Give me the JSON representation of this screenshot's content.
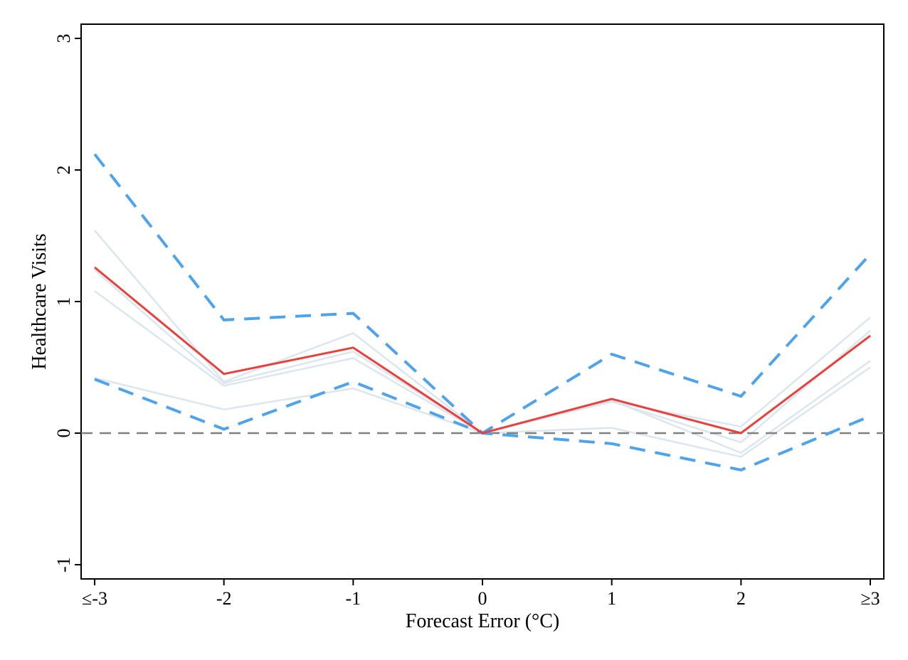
{
  "chart_data": {
    "type": "line",
    "xlabel": "Forecast Error (°C)",
    "ylabel": "Healthcare Visits",
    "categories": [
      "≤-3",
      "-2",
      "-1",
      "0",
      "1",
      "2",
      "≥3"
    ],
    "ylim": [
      -1,
      3
    ],
    "yticks": [
      "-1",
      "0",
      "1",
      "2",
      "3"
    ],
    "grid": false,
    "legend": "none",
    "reference_line": {
      "y": 0,
      "style": "dashed",
      "color": "#808080"
    },
    "series": [
      {
        "role": "estimate",
        "color": "#e8413b",
        "style": "solid",
        "values": [
          1.26,
          0.45,
          0.65,
          0.0,
          0.26,
          0.0,
          0.74
        ]
      },
      {
        "role": "ci-upper",
        "color": "#4ea3ea",
        "style": "dashed",
        "values": [
          2.12,
          0.86,
          0.91,
          0.0,
          0.6,
          0.28,
          1.36
        ]
      },
      {
        "role": "ci-lower",
        "color": "#4ea3ea",
        "style": "dashed",
        "values": [
          0.41,
          0.03,
          0.39,
          0.0,
          -0.08,
          -0.28,
          0.13
        ]
      },
      {
        "role": "alternative",
        "color": "#dce6ee",
        "style": "solid",
        "values": [
          1.54,
          0.39,
          0.76,
          0.0,
          0.24,
          0.05,
          0.88
        ]
      },
      {
        "role": "alternative",
        "color": "#dce6ee",
        "style": "solid",
        "values": [
          1.24,
          0.38,
          0.62,
          0.0,
          0.24,
          -0.07,
          0.78
        ]
      },
      {
        "role": "alternative",
        "color": "#dce6ee",
        "style": "solid",
        "values": [
          1.08,
          0.36,
          0.57,
          0.0,
          0.25,
          -0.15,
          0.55
        ]
      },
      {
        "role": "alternative",
        "color": "#dce6ee",
        "style": "solid",
        "values": [
          0.42,
          0.18,
          0.34,
          0.0,
          0.04,
          -0.18,
          0.5
        ]
      }
    ]
  }
}
